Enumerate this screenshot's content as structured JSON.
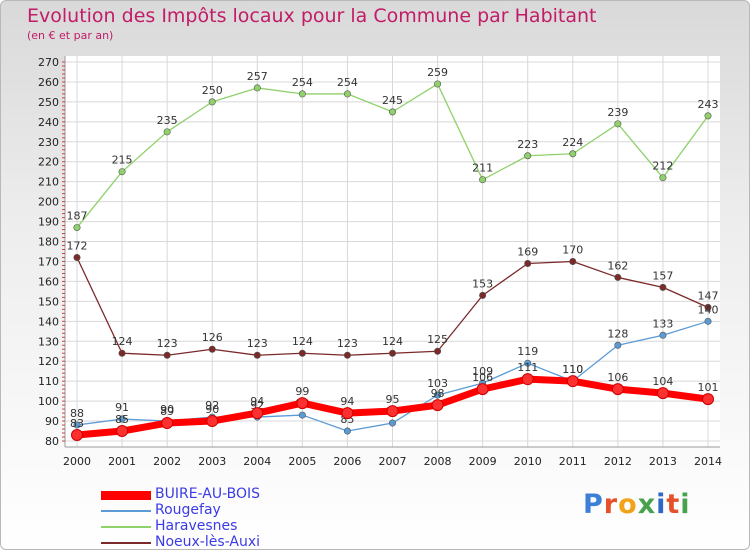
{
  "header": {
    "title": "Evolution des Impôts locaux pour la Commune par Habitant",
    "subtitle": "(en € et par an)"
  },
  "logo": {
    "text": "Proxiti",
    "colors": [
      "#3c7fd6",
      "#e6502a",
      "#f2a31a",
      "#48a14d",
      "#2f66c9",
      "#e6502a",
      "#48a14d"
    ]
  },
  "chart_data": {
    "type": "line",
    "title": "Evolution des Impôts locaux pour la Commune par Habitant",
    "subtitle": "(en € et par an)",
    "x": [
      2000,
      2001,
      2002,
      2003,
      2004,
      2005,
      2006,
      2007,
      2008,
      2009,
      2010,
      2011,
      2012,
      2013,
      2014
    ],
    "ylim": [
      80,
      270
    ],
    "yticks": [
      80,
      90,
      100,
      110,
      120,
      130,
      140,
      150,
      160,
      170,
      180,
      190,
      200,
      210,
      220,
      230,
      240,
      250,
      260,
      270
    ],
    "grid": true,
    "legend": "bottom-left",
    "series": [
      {
        "name": "BUIRE-AU-BOIS",
        "color": "#ff0000",
        "values": [
          83,
          85,
          89,
          90,
          94,
          99,
          94,
          95,
          98,
          106,
          111,
          110,
          106,
          104,
          101
        ]
      },
      {
        "name": "Rougefay",
        "color": "#5b9bd5",
        "values": [
          88,
          91,
          90,
          92,
          92,
          93,
          85,
          89,
          103,
          109,
          119,
          110,
          128,
          133,
          140
        ]
      },
      {
        "name": "Haravesnes",
        "color": "#8fd16a",
        "values": [
          187,
          215,
          235,
          250,
          257,
          254,
          254,
          245,
          259,
          211,
          223,
          224,
          239,
          212,
          243
        ]
      },
      {
        "name": "Noeux-lès-Auxi",
        "color": "#7b2a2a",
        "values": [
          172,
          124,
          123,
          126,
          123,
          124,
          123,
          124,
          125,
          153,
          169,
          170,
          162,
          157,
          147
        ]
      }
    ]
  }
}
